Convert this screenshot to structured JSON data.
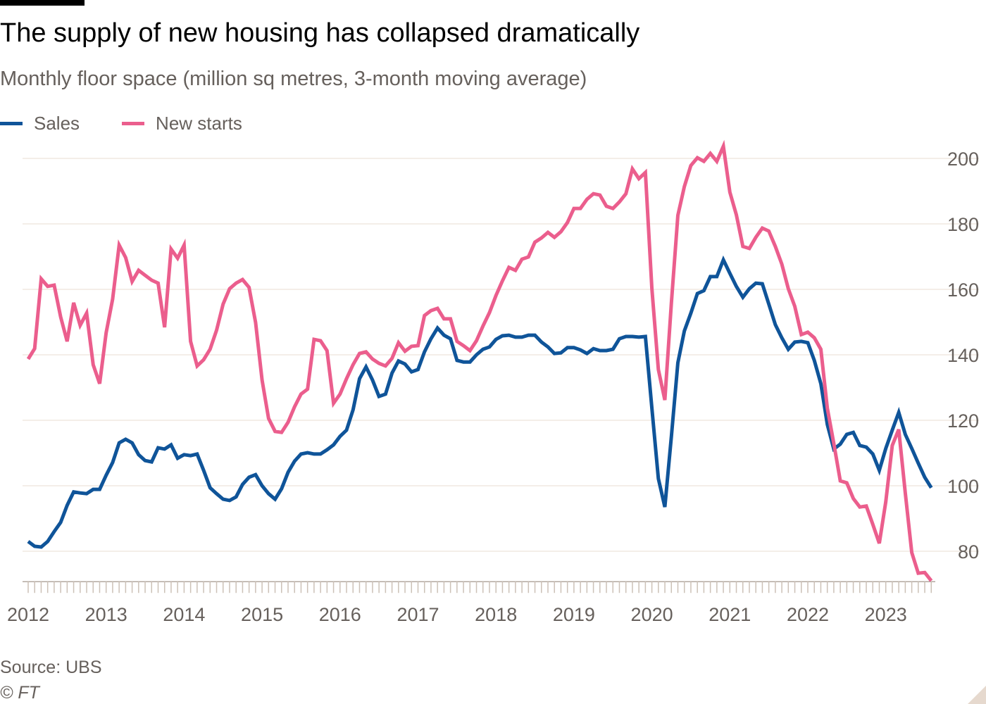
{
  "header": {
    "title": "The supply of new housing has collapsed dramatically",
    "subtitle": "Monthly floor space (million sq metres, 3-month moving average)"
  },
  "footer": {
    "source": "Source: UBS",
    "copyright": "© FT"
  },
  "chart_data": {
    "type": "line",
    "x_start": "2012-01",
    "x_end": "2023-08",
    "x_frequency": "monthly",
    "xlabel": "",
    "ylabel": "",
    "x_tick_labels": [
      "2012",
      "2013",
      "2014",
      "2015",
      "2016",
      "2017",
      "2018",
      "2019",
      "2020",
      "2021",
      "2022",
      "2023"
    ],
    "y_tick_labels": [
      "80",
      "100",
      "120",
      "140",
      "160",
      "180",
      "200"
    ],
    "y_ticks": [
      80,
      100,
      120,
      140,
      160,
      180,
      200
    ],
    "ylim": [
      70.7,
      205
    ],
    "grid": "horizontal",
    "y_axis_side": "right",
    "legend_position": "top-left",
    "series": [
      {
        "name": "Sales",
        "color": "#0f5499",
        "values": [
          83.0,
          81.5,
          81.3,
          83.0,
          86.0,
          88.8,
          94.0,
          98.1,
          97.8,
          97.6,
          98.9,
          98.9,
          103.2,
          107.1,
          113.1,
          114.2,
          113.1,
          109.5,
          107.7,
          107.3,
          111.6,
          111.2,
          112.5,
          108.4,
          109.5,
          109.2,
          109.7,
          104.7,
          99.4,
          97.6,
          95.9,
          95.5,
          96.6,
          100.4,
          102.6,
          103.4,
          100.0,
          97.6,
          95.9,
          99.1,
          104.1,
          107.5,
          109.7,
          110.1,
          109.7,
          109.7,
          111.0,
          112.5,
          115.1,
          117.0,
          123.2,
          132.7,
          136.3,
          132.3,
          127.3,
          128.0,
          134.4,
          138.1,
          137.2,
          134.8,
          135.5,
          140.9,
          144.9,
          148.2,
          146.0,
          144.9,
          138.3,
          137.8,
          137.8,
          140.0,
          141.7,
          142.4,
          144.7,
          145.8,
          146.0,
          145.4,
          145.4,
          146.0,
          146.0,
          143.9,
          142.4,
          140.4,
          140.6,
          142.2,
          142.2,
          141.5,
          140.4,
          141.9,
          141.3,
          141.3,
          141.7,
          144.9,
          145.6,
          145.6,
          145.4,
          145.6,
          123.7,
          102.2,
          93.5,
          115.1,
          137.6,
          147.3,
          152.7,
          158.7,
          159.6,
          163.9,
          163.9,
          169.0,
          164.9,
          160.9,
          157.6,
          160.2,
          161.9,
          161.7,
          155.5,
          149.2,
          145.2,
          141.7,
          143.9,
          144.1,
          143.7,
          138.3,
          131.2,
          118.7,
          111.2,
          112.7,
          115.7,
          116.3,
          112.3,
          111.8,
          109.7,
          104.7,
          111.4,
          117.0,
          122.4,
          115.7,
          111.4,
          106.9,
          102.6,
          99.4
        ]
      },
      {
        "name": "New starts",
        "color": "#eb5e8d",
        "values": [
          138.7,
          141.9,
          163.2,
          160.9,
          161.3,
          151.6,
          144.1,
          155.9,
          149.0,
          152.7,
          137.0,
          131.2,
          146.7,
          157.0,
          173.5,
          169.7,
          162.4,
          165.8,
          164.3,
          162.8,
          161.9,
          148.4,
          172.3,
          169.5,
          173.5,
          144.1,
          136.6,
          138.5,
          141.7,
          147.5,
          155.5,
          160.2,
          161.9,
          163.0,
          160.6,
          149.9,
          132.3,
          120.6,
          116.6,
          116.3,
          119.4,
          124.1,
          128.0,
          129.5,
          144.7,
          144.3,
          141.3,
          125.2,
          128.0,
          132.7,
          137.0,
          140.4,
          140.9,
          138.7,
          137.4,
          136.6,
          138.9,
          143.7,
          141.1,
          142.6,
          142.8,
          152.0,
          153.5,
          154.2,
          151.0,
          151.0,
          144.1,
          142.8,
          141.3,
          144.3,
          148.8,
          152.9,
          158.1,
          162.6,
          166.7,
          165.8,
          169.2,
          169.9,
          174.4,
          175.7,
          177.4,
          175.9,
          177.6,
          180.4,
          184.7,
          184.7,
          187.5,
          189.2,
          188.8,
          185.4,
          184.7,
          186.7,
          189.2,
          196.8,
          193.8,
          195.7,
          160.2,
          135.5,
          126.2,
          155.9,
          182.6,
          191.4,
          197.8,
          200.2,
          199.1,
          201.5,
          199.1,
          203.7,
          189.7,
          182.8,
          173.1,
          172.5,
          175.9,
          178.7,
          177.8,
          173.1,
          167.7,
          160.2,
          154.8,
          146.2,
          146.9,
          145.2,
          141.7,
          123.7,
          112.9,
          101.5,
          100.9,
          96.1,
          93.5,
          93.8,
          88.2,
          82.4,
          95.1,
          112.3,
          117.2,
          97.8,
          79.6,
          73.3,
          73.5,
          71.0
        ]
      }
    ]
  }
}
